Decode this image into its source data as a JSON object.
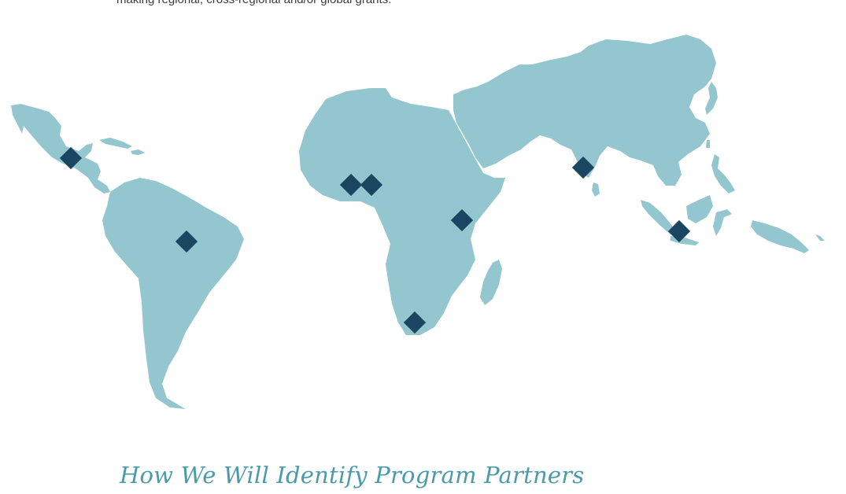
{
  "intro": {
    "text": "making regional, cross-regional and/or global grants."
  },
  "map": {
    "land_color": "#93c6cf",
    "marker_color": "#1b4661",
    "marker_shape": "diamond",
    "regions": [
      "Mexico and Central America",
      "South America",
      "Africa",
      "Madagascar",
      "Middle East and Asia",
      "India",
      "Sri Lanka",
      "Indonesia",
      "Philippines",
      "New Guinea"
    ],
    "markers": [
      {
        "name": "marker-mexico"
      },
      {
        "name": "marker-brazil"
      },
      {
        "name": "marker-west-africa-1"
      },
      {
        "name": "marker-west-africa-2"
      },
      {
        "name": "marker-east-africa"
      },
      {
        "name": "marker-south-africa"
      },
      {
        "name": "marker-india"
      },
      {
        "name": "marker-indonesia"
      }
    ]
  },
  "section": {
    "heading": "How We Will Identify Program Partners",
    "heading_color": "#4a9aa9"
  }
}
